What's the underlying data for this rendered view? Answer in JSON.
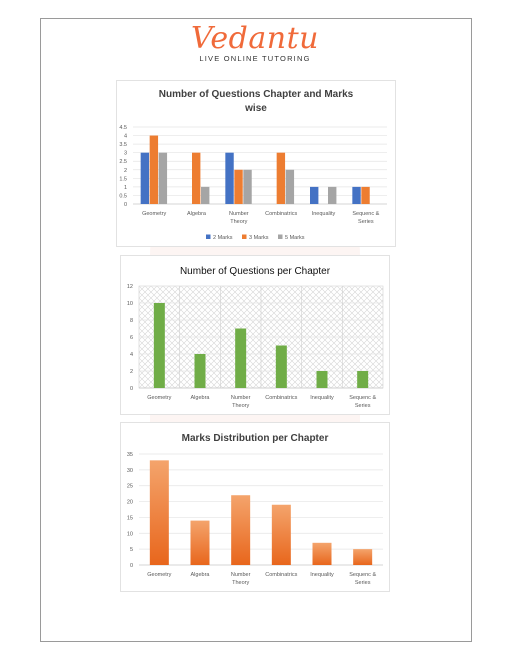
{
  "brand": {
    "name": "Vedantu",
    "tagline": "LIVE ONLINE TUTORING"
  },
  "colors": {
    "two_marks": "#4472c4",
    "three_marks": "#ed7d31",
    "five_marks": "#a5a5a5",
    "green": "#70ad47",
    "orange": "#ed7d31"
  },
  "chart_data": [
    {
      "type": "bar",
      "title_lines": [
        "Number of Questions Chapter and Marks",
        "wise"
      ],
      "categories": [
        [
          "Geometry"
        ],
        [
          "Algebra"
        ],
        [
          "Number",
          "Theory"
        ],
        [
          "Combinatrics"
        ],
        [
          "Inequality"
        ],
        [
          "Sequenc &",
          "Series"
        ]
      ],
      "yticks": [
        "0",
        "0.5",
        "1",
        "1.5",
        "2",
        "2.5",
        "3",
        "3.5",
        "4",
        "4.5"
      ],
      "ylim": [
        0,
        4.5
      ],
      "series": [
        {
          "name": "2 Marks",
          "values": [
            3,
            0,
            3,
            0,
            1,
            1
          ]
        },
        {
          "name": "3 Marks",
          "values": [
            4,
            3,
            2,
            3,
            0,
            1
          ]
        },
        {
          "name": "5 Marks",
          "values": [
            3,
            1,
            2,
            2,
            1,
            0
          ]
        }
      ],
      "legend": "bottom",
      "grid": true
    },
    {
      "type": "bar",
      "title_lines": [
        "Number of Questions per Chapter"
      ],
      "categories": [
        [
          "Geometry"
        ],
        [
          "Algebra"
        ],
        [
          "Number",
          "Theory"
        ],
        [
          "Combinatrics"
        ],
        [
          "Inequality"
        ],
        [
          "Sequenc &",
          "Series"
        ]
      ],
      "yticks": [
        "0",
        "2",
        "4",
        "6",
        "8",
        "10",
        "12"
      ],
      "ylim": [
        0,
        12
      ],
      "values": [
        10,
        4,
        7,
        5,
        2,
        2
      ],
      "grid": true
    },
    {
      "type": "bar",
      "title_lines": [
        "Marks Distribution per Chapter"
      ],
      "categories": [
        [
          "Geometry"
        ],
        [
          "Algebra"
        ],
        [
          "Number",
          "Theory"
        ],
        [
          "Combinatrics"
        ],
        [
          "Inequality"
        ],
        [
          "Sequenc &",
          "Series"
        ]
      ],
      "yticks": [
        "0",
        "5",
        "10",
        "15",
        "20",
        "25",
        "30",
        "35"
      ],
      "ylim": [
        0,
        35
      ],
      "values": [
        33,
        14,
        22,
        19,
        7,
        5
      ],
      "grid": true
    }
  ]
}
